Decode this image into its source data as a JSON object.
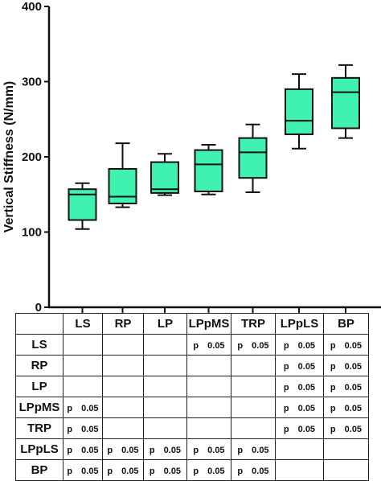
{
  "chart_data": {
    "type": "box",
    "ylabel": "Vertical Stiffness (N/mm)",
    "xlabel": "",
    "title": "",
    "ylim": [
      0,
      400
    ],
    "yticks": [
      0,
      100,
      200,
      300,
      400
    ],
    "grid": false,
    "box_color": "#40f2b0",
    "categories": [
      "LS",
      "RP",
      "LP",
      "LPpMS",
      "TRP",
      "LPpLS",
      "BP"
    ],
    "boxes": [
      {
        "category": "LS",
        "min": 104,
        "q1": 116,
        "median": 150,
        "q3": 157,
        "max": 165
      },
      {
        "category": "RP",
        "min": 133,
        "q1": 138,
        "median": 147,
        "q3": 184,
        "max": 218
      },
      {
        "category": "LP",
        "min": 149,
        "q1": 152,
        "median": 157,
        "q3": 193,
        "max": 204
      },
      {
        "category": "LPpMS",
        "min": 150,
        "q1": 154,
        "median": 190,
        "q3": 209,
        "max": 216
      },
      {
        "category": "TRP",
        "min": 153,
        "q1": 172,
        "median": 206,
        "q3": 225,
        "max": 243
      },
      {
        "category": "LPpLS",
        "min": 211,
        "q1": 230,
        "median": 248,
        "q3": 290,
        "max": 310
      },
      {
        "category": "BP",
        "min": 225,
        "q1": 238,
        "median": 286,
        "q3": 305,
        "max": 322
      }
    ]
  },
  "significance_table": {
    "columns": [
      "LS",
      "RP",
      "LP",
      "LPpMS",
      "TRP",
      "LPpLS",
      "BP"
    ],
    "rows": [
      {
        "label": "LS",
        "cells": [
          "",
          "",
          "",
          "p　0.05",
          "p　0.05",
          "p　0.05",
          "p　0.05"
        ]
      },
      {
        "label": "RP",
        "cells": [
          "",
          "",
          "",
          "",
          "",
          "p　0.05",
          "p　0.05"
        ]
      },
      {
        "label": "LP",
        "cells": [
          "",
          "",
          "",
          "",
          "",
          "p　0.05",
          "p　0.05"
        ]
      },
      {
        "label": "LPpMS",
        "cells": [
          "p　0.05",
          "",
          "",
          "",
          "",
          "p　0.05",
          "p　0.05"
        ]
      },
      {
        "label": "TRP",
        "cells": [
          "p　0.05",
          "",
          "",
          "",
          "",
          "p　0.05",
          "p　0.05"
        ]
      },
      {
        "label": "LPpLS",
        "cells": [
          "p　0.05",
          "p　0.05",
          "p　0.05",
          "p　0.05",
          "p　0.05",
          "",
          ""
        ]
      },
      {
        "label": "BP",
        "cells": [
          "p　0.05",
          "p　0.05",
          "p　0.05",
          "p　0.05",
          "p　0.05",
          "",
          ""
        ]
      }
    ]
  }
}
